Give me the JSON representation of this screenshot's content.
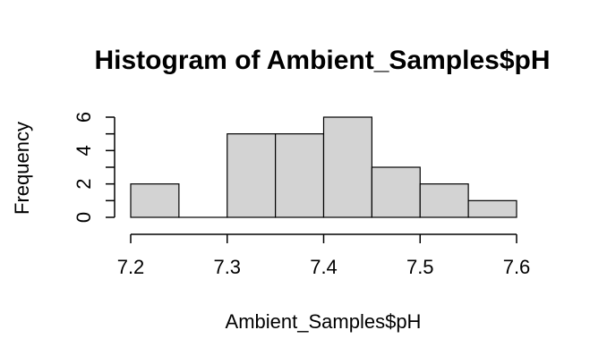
{
  "chart_data": {
    "type": "bar",
    "title": "Histogram of Ambient_Samples$pH",
    "xlabel": "Ambient_Samples$pH",
    "ylabel": "Frequency",
    "bins": [
      {
        "start": 7.2,
        "end": 7.25,
        "count": 2
      },
      {
        "start": 7.25,
        "end": 7.3,
        "count": 0
      },
      {
        "start": 7.3,
        "end": 7.35,
        "count": 5
      },
      {
        "start": 7.35,
        "end": 7.4,
        "count": 5
      },
      {
        "start": 7.4,
        "end": 7.45,
        "count": 6
      },
      {
        "start": 7.45,
        "end": 7.5,
        "count": 3
      },
      {
        "start": 7.5,
        "end": 7.55,
        "count": 2
      },
      {
        "start": 7.55,
        "end": 7.6,
        "count": 1
      }
    ],
    "xlim": [
      7.2,
      7.6
    ],
    "ylim": [
      0,
      6
    ],
    "x_ticks": [
      "7.2",
      "7.3",
      "7.4",
      "7.5",
      "7.6"
    ],
    "y_ticks": [
      "0",
      "2",
      "4",
      "6"
    ],
    "grid": false,
    "bar_color": "#d3d3d3",
    "edge_color": "#000000"
  }
}
